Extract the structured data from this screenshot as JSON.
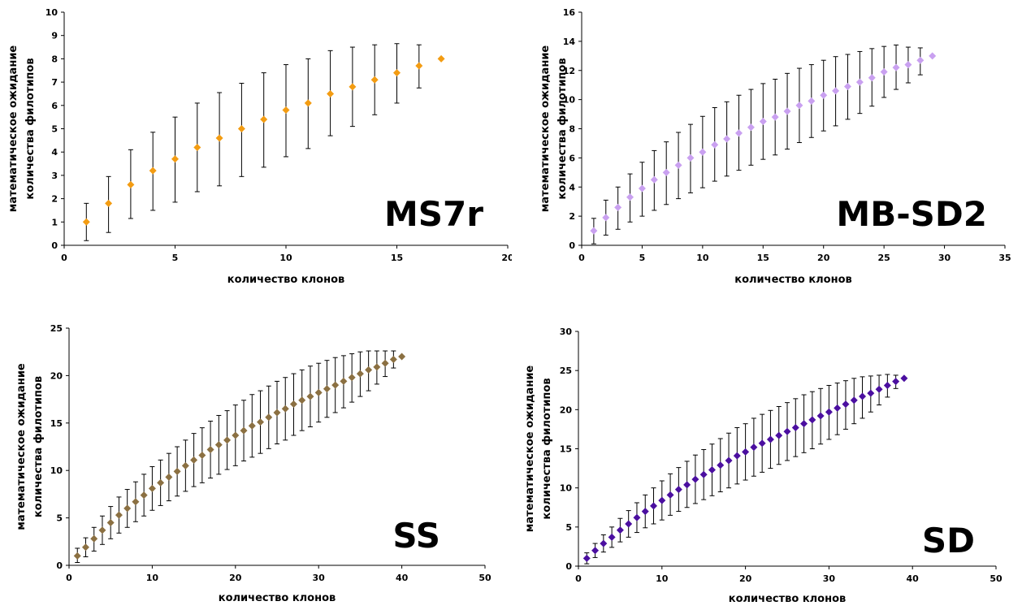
{
  "chart_data": [
    {
      "type": "scatter",
      "error_bars": true,
      "name_label": "MS7r",
      "xlabel": "количество клонов",
      "ylabel_line1": "математическое ожидание",
      "ylabel_line2": "количества филотипов",
      "xlim": [
        0,
        20
      ],
      "xticks": [
        0,
        5,
        10,
        15,
        20
      ],
      "ylim": [
        0,
        10
      ],
      "yticks": [
        0,
        1,
        2,
        3,
        4,
        5,
        6,
        7,
        8,
        9,
        10
      ],
      "color": "#f39c12",
      "points": [
        {
          "x": 1,
          "y": 1.0,
          "lo": 0.2,
          "hi": 1.8
        },
        {
          "x": 2,
          "y": 1.8,
          "lo": 0.55,
          "hi": 2.95
        },
        {
          "x": 3,
          "y": 2.6,
          "lo": 1.15,
          "hi": 4.1
        },
        {
          "x": 4,
          "y": 3.2,
          "lo": 1.5,
          "hi": 4.85
        },
        {
          "x": 5,
          "y": 3.7,
          "lo": 1.85,
          "hi": 5.5
        },
        {
          "x": 6,
          "y": 4.2,
          "lo": 2.3,
          "hi": 6.1
        },
        {
          "x": 7,
          "y": 4.6,
          "lo": 2.55,
          "hi": 6.55
        },
        {
          "x": 8,
          "y": 5.0,
          "lo": 2.95,
          "hi": 6.95
        },
        {
          "x": 9,
          "y": 5.4,
          "lo": 3.35,
          "hi": 7.4
        },
        {
          "x": 10,
          "y": 5.8,
          "lo": 3.8,
          "hi": 7.75
        },
        {
          "x": 11,
          "y": 6.1,
          "lo": 4.15,
          "hi": 8.0
        },
        {
          "x": 12,
          "y": 6.5,
          "lo": 4.7,
          "hi": 8.35
        },
        {
          "x": 13,
          "y": 6.8,
          "lo": 5.1,
          "hi": 8.5
        },
        {
          "x": 14,
          "y": 7.1,
          "lo": 5.6,
          "hi": 8.6
        },
        {
          "x": 15,
          "y": 7.4,
          "lo": 6.1,
          "hi": 8.65
        },
        {
          "x": 16,
          "y": 7.7,
          "lo": 6.75,
          "hi": 8.6
        },
        {
          "x": 17,
          "y": 8.0,
          "lo": 8.0,
          "hi": 8.0
        }
      ]
    },
    {
      "type": "scatter",
      "error_bars": true,
      "name_label": "MB-SD2",
      "xlabel": "количество клонов",
      "ylabel_line1": "математическое ожидание",
      "ylabel_line2": "количества филотипов",
      "xlim": [
        0,
        35
      ],
      "xticks": [
        0,
        5,
        10,
        15,
        20,
        25,
        30,
        35
      ],
      "ylim": [
        0,
        16
      ],
      "yticks": [
        0,
        2,
        4,
        6,
        8,
        10,
        12,
        14,
        16
      ],
      "color": "#c9a0f0",
      "points": [
        {
          "x": 1,
          "y": 1.0,
          "lo": 0.1,
          "hi": 1.85
        },
        {
          "x": 2,
          "y": 1.9,
          "lo": 0.7,
          "hi": 3.1
        },
        {
          "x": 3,
          "y": 2.6,
          "lo": 1.1,
          "hi": 4.0
        },
        {
          "x": 4,
          "y": 3.3,
          "lo": 1.6,
          "hi": 4.9
        },
        {
          "x": 5,
          "y": 3.9,
          "lo": 2.0,
          "hi": 5.7
        },
        {
          "x": 6,
          "y": 4.5,
          "lo": 2.4,
          "hi": 6.5
        },
        {
          "x": 7,
          "y": 5.0,
          "lo": 2.8,
          "hi": 7.1
        },
        {
          "x": 8,
          "y": 5.5,
          "lo": 3.2,
          "hi": 7.75
        },
        {
          "x": 9,
          "y": 6.0,
          "lo": 3.6,
          "hi": 8.3
        },
        {
          "x": 10,
          "y": 6.4,
          "lo": 3.95,
          "hi": 8.85
        },
        {
          "x": 11,
          "y": 6.9,
          "lo": 4.4,
          "hi": 9.45
        },
        {
          "x": 12,
          "y": 7.3,
          "lo": 4.75,
          "hi": 9.85
        },
        {
          "x": 13,
          "y": 7.7,
          "lo": 5.15,
          "hi": 10.3
        },
        {
          "x": 14,
          "y": 8.1,
          "lo": 5.5,
          "hi": 10.7
        },
        {
          "x": 15,
          "y": 8.5,
          "lo": 5.9,
          "hi": 11.1
        },
        {
          "x": 16,
          "y": 8.8,
          "lo": 6.2,
          "hi": 11.4
        },
        {
          "x": 17,
          "y": 9.2,
          "lo": 6.6,
          "hi": 11.8
        },
        {
          "x": 18,
          "y": 9.6,
          "lo": 7.05,
          "hi": 12.15
        },
        {
          "x": 19,
          "y": 9.9,
          "lo": 7.4,
          "hi": 12.4
        },
        {
          "x": 20,
          "y": 10.3,
          "lo": 7.85,
          "hi": 12.7
        },
        {
          "x": 21,
          "y": 10.6,
          "lo": 8.2,
          "hi": 12.95
        },
        {
          "x": 22,
          "y": 10.9,
          "lo": 8.65,
          "hi": 13.1
        },
        {
          "x": 23,
          "y": 11.2,
          "lo": 9.05,
          "hi": 13.3
        },
        {
          "x": 24,
          "y": 11.5,
          "lo": 9.55,
          "hi": 13.5
        },
        {
          "x": 25,
          "y": 11.9,
          "lo": 10.15,
          "hi": 13.65
        },
        {
          "x": 26,
          "y": 12.2,
          "lo": 10.7,
          "hi": 13.75
        },
        {
          "x": 27,
          "y": 12.4,
          "lo": 11.15,
          "hi": 13.6
        },
        {
          "x": 28,
          "y": 12.7,
          "lo": 11.7,
          "hi": 13.55
        },
        {
          "x": 29,
          "y": 13.0,
          "lo": 13.0,
          "hi": 13.0
        }
      ]
    },
    {
      "type": "scatter",
      "error_bars": true,
      "name_label": "SS",
      "xlabel": "количество клонов",
      "ylabel_line1": "математическое ожидание",
      "ylabel_line2": "количества филотипов",
      "xlim": [
        0,
        50
      ],
      "xticks": [
        0,
        10,
        20,
        30,
        40,
        50
      ],
      "ylim": [
        0,
        25
      ],
      "yticks": [
        0,
        5,
        10,
        15,
        20,
        25
      ],
      "color": "#8b7042",
      "points": [
        {
          "x": 1,
          "y": 1.0,
          "lo": 0.3,
          "hi": 1.8
        },
        {
          "x": 2,
          "y": 1.9,
          "lo": 0.9,
          "hi": 2.9
        },
        {
          "x": 3,
          "y": 2.8,
          "lo": 1.5,
          "hi": 4.0
        },
        {
          "x": 4,
          "y": 3.7,
          "lo": 2.2,
          "hi": 5.2
        },
        {
          "x": 5,
          "y": 4.5,
          "lo": 2.8,
          "hi": 6.2
        },
        {
          "x": 6,
          "y": 5.3,
          "lo": 3.4,
          "hi": 7.2
        },
        {
          "x": 7,
          "y": 6.0,
          "lo": 4.0,
          "hi": 8.0
        },
        {
          "x": 8,
          "y": 6.7,
          "lo": 4.6,
          "hi": 8.8
        },
        {
          "x": 9,
          "y": 7.4,
          "lo": 5.2,
          "hi": 9.6
        },
        {
          "x": 10,
          "y": 8.1,
          "lo": 5.8,
          "hi": 10.4
        },
        {
          "x": 11,
          "y": 8.7,
          "lo": 6.3,
          "hi": 11.1
        },
        {
          "x": 12,
          "y": 9.3,
          "lo": 6.8,
          "hi": 11.8
        },
        {
          "x": 13,
          "y": 9.9,
          "lo": 7.3,
          "hi": 12.5
        },
        {
          "x": 14,
          "y": 10.5,
          "lo": 7.8,
          "hi": 13.2
        },
        {
          "x": 15,
          "y": 11.1,
          "lo": 8.3,
          "hi": 13.9
        },
        {
          "x": 16,
          "y": 11.6,
          "lo": 8.7,
          "hi": 14.5
        },
        {
          "x": 17,
          "y": 12.2,
          "lo": 9.2,
          "hi": 15.2
        },
        {
          "x": 18,
          "y": 12.7,
          "lo": 9.6,
          "hi": 15.8
        },
        {
          "x": 19,
          "y": 13.2,
          "lo": 10.1,
          "hi": 16.3
        },
        {
          "x": 20,
          "y": 13.7,
          "lo": 10.5,
          "hi": 16.9
        },
        {
          "x": 21,
          "y": 14.2,
          "lo": 11.0,
          "hi": 17.4
        },
        {
          "x": 22,
          "y": 14.7,
          "lo": 11.4,
          "hi": 18.0
        },
        {
          "x": 23,
          "y": 15.1,
          "lo": 11.8,
          "hi": 18.4
        },
        {
          "x": 24,
          "y": 15.6,
          "lo": 12.3,
          "hi": 18.9
        },
        {
          "x": 25,
          "y": 16.1,
          "lo": 12.8,
          "hi": 19.4
        },
        {
          "x": 26,
          "y": 16.5,
          "lo": 13.2,
          "hi": 19.8
        },
        {
          "x": 27,
          "y": 17.0,
          "lo": 13.7,
          "hi": 20.2
        },
        {
          "x": 28,
          "y": 17.4,
          "lo": 14.2,
          "hi": 20.6
        },
        {
          "x": 29,
          "y": 17.8,
          "lo": 14.6,
          "hi": 21.0
        },
        {
          "x": 30,
          "y": 18.2,
          "lo": 15.1,
          "hi": 21.3
        },
        {
          "x": 31,
          "y": 18.6,
          "lo": 15.6,
          "hi": 21.6
        },
        {
          "x": 32,
          "y": 19.0,
          "lo": 16.1,
          "hi": 21.9
        },
        {
          "x": 33,
          "y": 19.4,
          "lo": 16.6,
          "hi": 22.1
        },
        {
          "x": 34,
          "y": 19.8,
          "lo": 17.2,
          "hi": 22.3
        },
        {
          "x": 35,
          "y": 20.2,
          "lo": 17.8,
          "hi": 22.5
        },
        {
          "x": 36,
          "y": 20.6,
          "lo": 18.4,
          "hi": 22.6
        },
        {
          "x": 37,
          "y": 20.9,
          "lo": 19.1,
          "hi": 22.6
        },
        {
          "x": 38,
          "y": 21.3,
          "lo": 19.9,
          "hi": 22.6
        },
        {
          "x": 39,
          "y": 21.7,
          "lo": 20.8,
          "hi": 22.6
        },
        {
          "x": 40,
          "y": 22.0,
          "lo": 22.0,
          "hi": 22.0
        }
      ]
    },
    {
      "type": "scatter",
      "error_bars": true,
      "name_label": "SD",
      "xlabel": "количество клонов",
      "ylabel_line1": "математическое ожидание",
      "ylabel_line2": "количества филотипов",
      "xlim": [
        0,
        50
      ],
      "xticks": [
        0,
        10,
        20,
        30,
        40,
        50
      ],
      "ylim": [
        0,
        30
      ],
      "yticks": [
        0,
        5,
        10,
        15,
        20,
        25,
        30
      ],
      "color": "#4b0fa0",
      "points": [
        {
          "x": 1,
          "y": 1.0,
          "lo": 0.3,
          "hi": 1.7
        },
        {
          "x": 2,
          "y": 2.0,
          "lo": 1.1,
          "hi": 2.9
        },
        {
          "x": 3,
          "y": 2.9,
          "lo": 1.8,
          "hi": 4.0
        },
        {
          "x": 4,
          "y": 3.7,
          "lo": 2.4,
          "hi": 5.0
        },
        {
          "x": 5,
          "y": 4.6,
          "lo": 3.1,
          "hi": 6.1
        },
        {
          "x": 6,
          "y": 5.4,
          "lo": 3.7,
          "hi": 7.1
        },
        {
          "x": 7,
          "y": 6.2,
          "lo": 4.3,
          "hi": 8.1
        },
        {
          "x": 8,
          "y": 7.0,
          "lo": 4.9,
          "hi": 9.1
        },
        {
          "x": 9,
          "y": 7.7,
          "lo": 5.4,
          "hi": 10.0
        },
        {
          "x": 10,
          "y": 8.4,
          "lo": 5.9,
          "hi": 10.9
        },
        {
          "x": 11,
          "y": 9.1,
          "lo": 6.5,
          "hi": 11.8
        },
        {
          "x": 12,
          "y": 9.8,
          "lo": 7.0,
          "hi": 12.6
        },
        {
          "x": 13,
          "y": 10.4,
          "lo": 7.5,
          "hi": 13.4
        },
        {
          "x": 14,
          "y": 11.1,
          "lo": 8.0,
          "hi": 14.2
        },
        {
          "x": 15,
          "y": 11.7,
          "lo": 8.5,
          "hi": 14.9
        },
        {
          "x": 16,
          "y": 12.3,
          "lo": 9.0,
          "hi": 15.6
        },
        {
          "x": 17,
          "y": 12.9,
          "lo": 9.5,
          "hi": 16.3
        },
        {
          "x": 18,
          "y": 13.5,
          "lo": 10.0,
          "hi": 17.0
        },
        {
          "x": 19,
          "y": 14.1,
          "lo": 10.5,
          "hi": 17.7
        },
        {
          "x": 20,
          "y": 14.6,
          "lo": 11.0,
          "hi": 18.2
        },
        {
          "x": 21,
          "y": 15.2,
          "lo": 11.5,
          "hi": 18.9
        },
        {
          "x": 22,
          "y": 15.7,
          "lo": 12.0,
          "hi": 19.4
        },
        {
          "x": 23,
          "y": 16.2,
          "lo": 12.5,
          "hi": 19.9
        },
        {
          "x": 24,
          "y": 16.7,
          "lo": 13.0,
          "hi": 20.4
        },
        {
          "x": 25,
          "y": 17.2,
          "lo": 13.5,
          "hi": 20.9
        },
        {
          "x": 26,
          "y": 17.7,
          "lo": 14.0,
          "hi": 21.4
        },
        {
          "x": 27,
          "y": 18.2,
          "lo": 14.5,
          "hi": 21.9
        },
        {
          "x": 28,
          "y": 18.7,
          "lo": 15.0,
          "hi": 22.3
        },
        {
          "x": 29,
          "y": 19.2,
          "lo": 15.6,
          "hi": 22.7
        },
        {
          "x": 30,
          "y": 19.7,
          "lo": 16.2,
          "hi": 23.1
        },
        {
          "x": 31,
          "y": 20.2,
          "lo": 16.8,
          "hi": 23.4
        },
        {
          "x": 32,
          "y": 20.7,
          "lo": 17.5,
          "hi": 23.7
        },
        {
          "x": 33,
          "y": 21.2,
          "lo": 18.2,
          "hi": 24.0
        },
        {
          "x": 34,
          "y": 21.7,
          "lo": 18.9,
          "hi": 24.2
        },
        {
          "x": 35,
          "y": 22.1,
          "lo": 19.7,
          "hi": 24.3
        },
        {
          "x": 36,
          "y": 22.6,
          "lo": 20.6,
          "hi": 24.4
        },
        {
          "x": 37,
          "y": 23.1,
          "lo": 21.6,
          "hi": 24.5
        },
        {
          "x": 38,
          "y": 23.6,
          "lo": 22.7,
          "hi": 24.4
        },
        {
          "x": 39,
          "y": 24.0,
          "lo": 24.0,
          "hi": 24.0
        }
      ]
    }
  ]
}
